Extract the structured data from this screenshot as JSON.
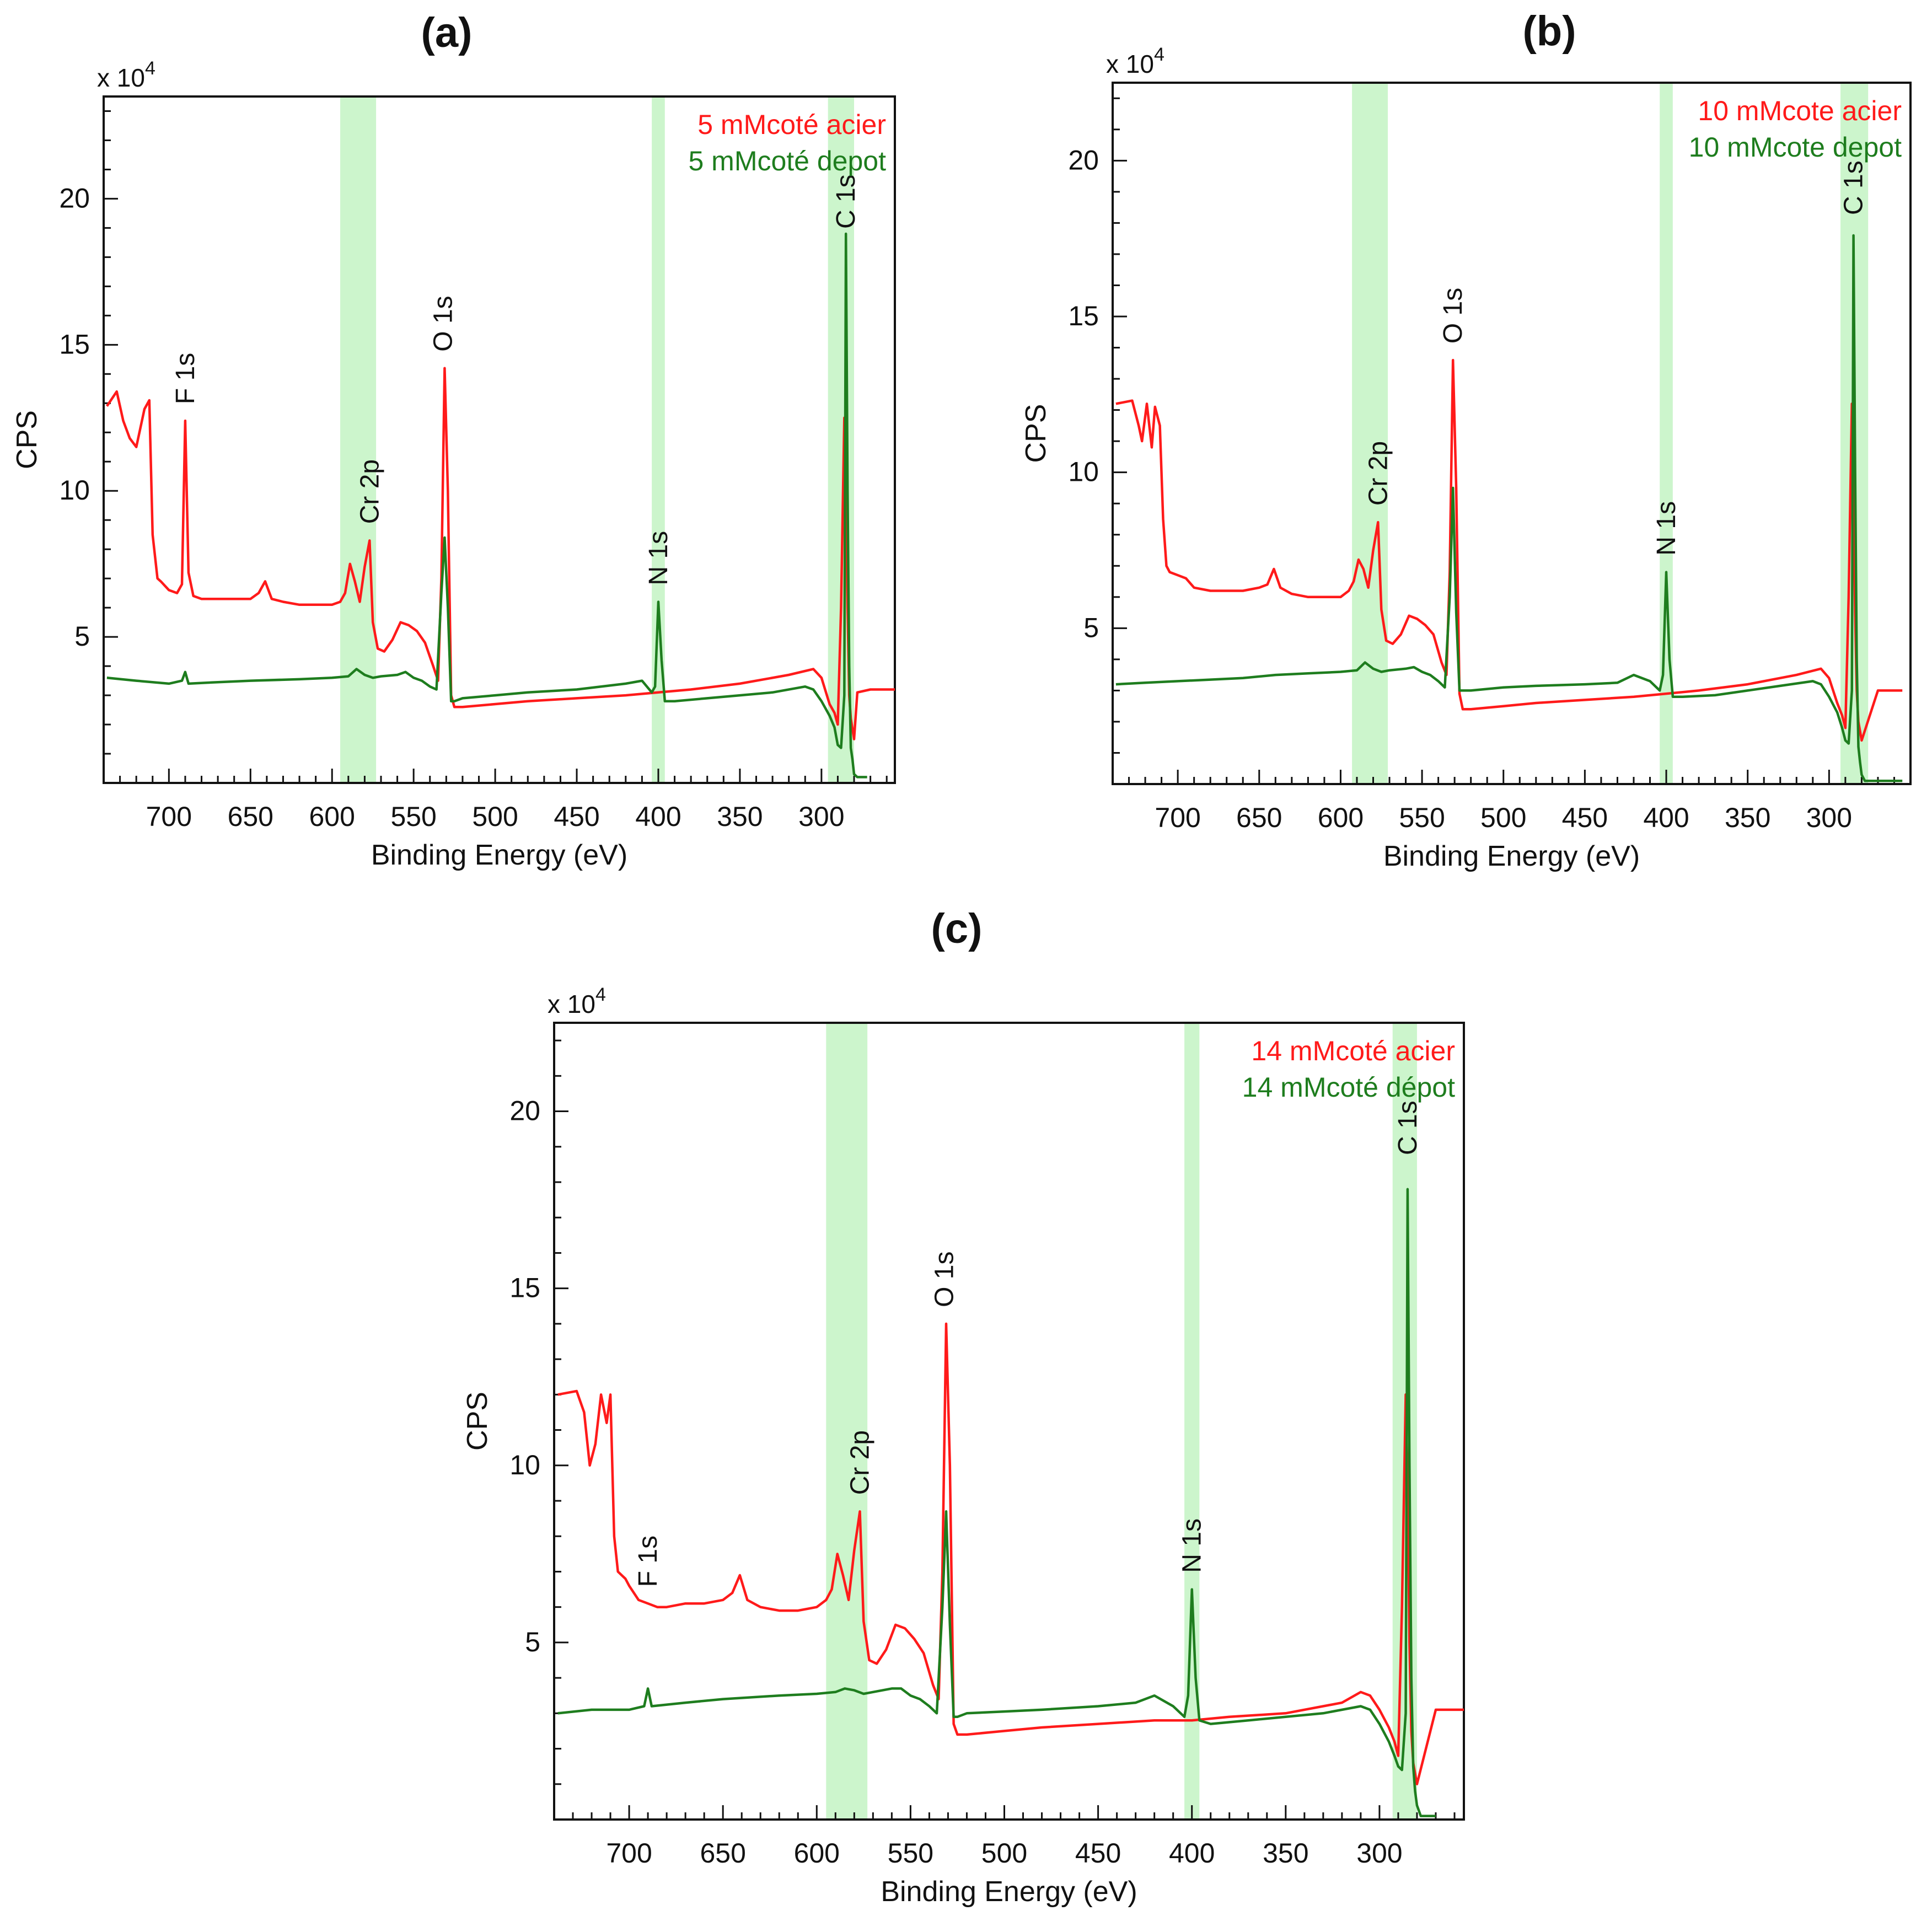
{
  "figure": {
    "panels": [
      {
        "id": "a",
        "panel_label": "(a)",
        "axis_multiplier": "x 10",
        "axis_exponent": "4",
        "xlabel": "Binding Energy (eV)",
        "ylabel": "CPS",
        "x_ticks": [
          "700",
          "650",
          "600",
          "550",
          "500",
          "450",
          "400",
          "350",
          "300"
        ],
        "y_ticks": [
          "5",
          "10",
          "15",
          "20"
        ],
        "legend": [
          {
            "text": "5 mMcoté acier",
            "color": "#ff1a1a"
          },
          {
            "text": "5 mMcoté depot",
            "color": "#1e7d1e"
          }
        ],
        "peak_labels": [
          "F 1s",
          "Cr 2p",
          "O 1s",
          "N 1s",
          "C 1s"
        ]
      },
      {
        "id": "b",
        "panel_label": "(b)",
        "axis_multiplier": "x 10",
        "axis_exponent": "4",
        "xlabel": "Binding Energy (eV)",
        "ylabel": "CPS",
        "x_ticks": [
          "700",
          "650",
          "600",
          "550",
          "500",
          "450",
          "400",
          "350",
          "300"
        ],
        "y_ticks": [
          "5",
          "10",
          "15",
          "20"
        ],
        "legend": [
          {
            "text": "10 mMcote acier",
            "color": "#ff1a1a"
          },
          {
            "text": "10 mMcote depot",
            "color": "#1e7d1e"
          }
        ],
        "peak_labels": [
          "Cr 2p",
          "O 1s",
          "N 1s",
          "C 1s"
        ]
      },
      {
        "id": "c",
        "panel_label": "(c)",
        "axis_multiplier": "x 10",
        "axis_exponent": "4",
        "xlabel": "Binding Energy (eV)",
        "ylabel": "CPS",
        "x_ticks": [
          "700",
          "650",
          "600",
          "550",
          "500",
          "450",
          "400",
          "350",
          "300"
        ],
        "y_ticks": [
          "5",
          "10",
          "15",
          "20"
        ],
        "legend": [
          {
            "text": "14 mMcoté acier",
            "color": "#ff1a1a"
          },
          {
            "text": "14 mMcoté dépot",
            "color": "#1e7d1e"
          }
        ],
        "peak_labels": [
          "F 1s",
          "Cr 2p",
          "O 1s",
          "N 1s",
          "C 1s"
        ]
      }
    ]
  },
  "chart_data": [
    {
      "panel": "(a)",
      "type": "line",
      "xlim": [
        740,
        255
      ],
      "ylim": [
        0,
        23.5
      ],
      "y_scale_note": "CPS x 10^4",
      "highlight_bands": [
        [
          595,
          573
        ],
        [
          404,
          396
        ],
        [
          296,
          280
        ]
      ],
      "peak_annotations": [
        {
          "label": "F 1s",
          "x": 690
        },
        {
          "label": "Cr 2p",
          "x": 577
        },
        {
          "label": "O 1s",
          "x": 532
        },
        {
          "label": "N 1s",
          "x": 400
        },
        {
          "label": "C 1s",
          "x": 285
        }
      ],
      "series": [
        {
          "name": "5 mMcoté acier",
          "color": "#ff1a1a",
          "x": [
            738,
            732,
            728,
            724,
            720,
            715,
            712,
            710,
            707,
            705,
            700,
            695,
            692,
            690,
            688,
            685,
            680,
            670,
            660,
            650,
            645,
            641,
            637,
            630,
            620,
            610,
            600,
            595,
            592,
            589,
            586,
            583,
            580,
            577,
            575,
            572,
            568,
            563,
            558,
            553,
            548,
            543,
            538,
            535,
            533,
            531,
            529,
            527,
            525,
            520,
            500,
            480,
            450,
            420,
            400,
            380,
            350,
            320,
            305,
            300,
            295,
            292,
            290,
            288,
            286,
            285,
            284,
            283,
            282,
            280,
            278,
            270,
            255
          ],
          "values": [
            12.9,
            13.4,
            12.4,
            11.8,
            11.5,
            12.8,
            13.1,
            8.5,
            7.0,
            6.9,
            6.6,
            6.5,
            6.8,
            12.4,
            7.2,
            6.4,
            6.3,
            6.3,
            6.3,
            6.3,
            6.5,
            6.9,
            6.3,
            6.2,
            6.1,
            6.1,
            6.1,
            6.2,
            6.5,
            7.5,
            6.9,
            6.2,
            7.4,
            8.3,
            5.5,
            4.6,
            4.5,
            4.9,
            5.5,
            5.4,
            5.2,
            4.8,
            4.0,
            3.5,
            7.0,
            14.2,
            10.0,
            3.0,
            2.6,
            2.6,
            2.7,
            2.8,
            2.9,
            3.0,
            3.1,
            3.2,
            3.4,
            3.7,
            3.9,
            3.6,
            2.7,
            2.4,
            2.0,
            6.0,
            12.5,
            10.5,
            6.0,
            3.0,
            2.2,
            1.5,
            3.1,
            3.2,
            3.2
          ]
        },
        {
          "name": "5 mMcoté depot",
          "color": "#1e7d1e",
          "x": [
            738,
            720,
            700,
            692,
            690,
            688,
            670,
            650,
            620,
            600,
            590,
            585,
            580,
            575,
            570,
            560,
            555,
            550,
            545,
            540,
            536,
            533,
            531,
            529,
            527,
            525,
            520,
            500,
            480,
            450,
            420,
            410,
            404,
            402,
            400,
            398,
            396,
            390,
            370,
            350,
            330,
            310,
            305,
            300,
            295,
            292,
            290,
            288,
            286,
            285,
            284,
            283,
            282,
            281,
            280,
            278,
            272
          ],
          "values": [
            3.6,
            3.5,
            3.4,
            3.5,
            3.8,
            3.4,
            3.45,
            3.5,
            3.55,
            3.6,
            3.65,
            3.9,
            3.7,
            3.6,
            3.65,
            3.7,
            3.8,
            3.6,
            3.5,
            3.3,
            3.2,
            6.5,
            8.4,
            6.0,
            2.8,
            2.8,
            2.9,
            3.0,
            3.1,
            3.2,
            3.4,
            3.5,
            3.1,
            3.3,
            6.2,
            4.2,
            2.8,
            2.8,
            2.9,
            3.0,
            3.1,
            3.3,
            3.2,
            2.8,
            2.3,
            1.9,
            1.3,
            1.2,
            3.0,
            18.8,
            10.0,
            4.0,
            1.2,
            0.8,
            0.3,
            0.2,
            0.2
          ]
        }
      ]
    },
    {
      "panel": "(b)",
      "type": "line",
      "xlim": [
        740,
        250
      ],
      "ylim": [
        0,
        22.5
      ],
      "y_scale_note": "CPS x 10^4",
      "highlight_bands": [
        [
          593,
          571
        ],
        [
          404,
          396
        ],
        [
          293,
          276
        ]
      ],
      "peak_annotations": [
        {
          "label": "Cr 2p",
          "x": 577
        },
        {
          "label": "O 1s",
          "x": 531
        },
        {
          "label": "N 1s",
          "x": 400
        },
        {
          "label": "C 1s",
          "x": 285
        }
      ],
      "series": [
        {
          "name": "10 mMcote acier",
          "color": "#ff1a1a",
          "x": [
            738,
            728,
            724,
            722,
            719,
            716,
            714,
            711,
            709,
            707,
            705,
            700,
            695,
            690,
            680,
            670,
            660,
            650,
            645,
            641,
            637,
            630,
            620,
            610,
            600,
            595,
            592,
            589,
            586,
            583,
            580,
            577,
            575,
            572,
            568,
            563,
            558,
            553,
            548,
            543,
            538,
            535,
            533,
            531,
            529,
            527,
            525,
            520,
            500,
            480,
            450,
            420,
            400,
            380,
            350,
            320,
            305,
            300,
            295,
            292,
            290,
            288,
            286,
            285,
            284,
            283,
            282,
            280,
            270,
            255
          ],
          "values": [
            12.2,
            12.3,
            11.5,
            11.0,
            12.2,
            10.8,
            12.1,
            11.5,
            8.5,
            7.0,
            6.8,
            6.7,
            6.6,
            6.3,
            6.2,
            6.2,
            6.2,
            6.3,
            6.4,
            6.9,
            6.3,
            6.1,
            6.0,
            6.0,
            6.0,
            6.2,
            6.5,
            7.2,
            6.9,
            6.3,
            7.5,
            8.4,
            5.6,
            4.6,
            4.5,
            4.8,
            5.4,
            5.3,
            5.1,
            4.8,
            3.9,
            3.5,
            6.8,
            13.6,
            9.5,
            2.9,
            2.4,
            2.4,
            2.5,
            2.6,
            2.7,
            2.8,
            2.9,
            3.0,
            3.2,
            3.5,
            3.7,
            3.4,
            2.6,
            2.2,
            1.8,
            6.0,
            12.2,
            9.5,
            5.5,
            3.0,
            2.0,
            1.4,
            3.0,
            3.0
          ]
        },
        {
          "name": "10 mMcote depot",
          "color": "#1e7d1e",
          "x": [
            738,
            720,
            700,
            680,
            660,
            640,
            620,
            600,
            590,
            585,
            580,
            575,
            570,
            560,
            555,
            550,
            545,
            540,
            536,
            533,
            531,
            529,
            527,
            525,
            520,
            500,
            480,
            450,
            430,
            420,
            410,
            404,
            402,
            400,
            398,
            396,
            390,
            370,
            350,
            330,
            310,
            305,
            300,
            295,
            292,
            290,
            288,
            286,
            285,
            284,
            283,
            282,
            281,
            280,
            278,
            270,
            255
          ],
          "values": [
            3.2,
            3.25,
            3.3,
            3.35,
            3.4,
            3.5,
            3.55,
            3.6,
            3.65,
            3.9,
            3.7,
            3.6,
            3.65,
            3.7,
            3.75,
            3.6,
            3.5,
            3.3,
            3.1,
            6.0,
            9.5,
            5.5,
            3.0,
            3.0,
            3.0,
            3.1,
            3.15,
            3.2,
            3.25,
            3.5,
            3.3,
            3.0,
            3.5,
            6.8,
            4.0,
            2.8,
            2.8,
            2.85,
            3.0,
            3.15,
            3.3,
            3.2,
            2.8,
            2.3,
            1.8,
            1.4,
            1.3,
            3.0,
            17.6,
            10.0,
            4.0,
            1.2,
            0.7,
            0.3,
            0.1,
            0.1,
            0.1
          ]
        }
      ]
    },
    {
      "panel": "(c)",
      "type": "line",
      "xlim": [
        740,
        255
      ],
      "ylim": [
        0,
        22.5
      ],
      "y_scale_note": "CPS x 10^4",
      "highlight_bands": [
        [
          595,
          573
        ],
        [
          404,
          396
        ],
        [
          293,
          280
        ]
      ],
      "peak_annotations": [
        {
          "label": "F 1s",
          "x": 690
        },
        {
          "label": "Cr 2p",
          "x": 577
        },
        {
          "label": "O 1s",
          "x": 532
        },
        {
          "label": "N 1s",
          "x": 400
        },
        {
          "label": "C 1s",
          "x": 285
        }
      ],
      "series": [
        {
          "name": "14 mMcoté acier",
          "color": "#ff1a1a",
          "x": [
            738,
            728,
            724,
            721,
            718,
            715,
            712,
            710,
            708,
            706,
            704,
            702,
            700,
            695,
            690,
            685,
            680,
            670,
            660,
            650,
            645,
            641,
            637,
            630,
            620,
            610,
            600,
            595,
            592,
            589,
            586,
            583,
            580,
            577,
            575,
            572,
            568,
            563,
            558,
            553,
            548,
            543,
            538,
            535,
            533,
            531,
            529,
            527,
            525,
            520,
            500,
            480,
            450,
            420,
            400,
            380,
            350,
            320,
            310,
            305,
            300,
            295,
            292,
            290,
            288,
            286,
            285,
            284,
            283,
            282,
            280,
            270,
            255
          ],
          "values": [
            12.0,
            12.1,
            11.5,
            10.0,
            10.6,
            12.0,
            11.2,
            12.0,
            8.0,
            7.0,
            6.9,
            6.8,
            6.6,
            6.2,
            6.1,
            6.0,
            6.0,
            6.1,
            6.1,
            6.2,
            6.4,
            6.9,
            6.2,
            6.0,
            5.9,
            5.9,
            6.0,
            6.2,
            6.5,
            7.5,
            6.9,
            6.2,
            7.6,
            8.7,
            5.6,
            4.5,
            4.4,
            4.8,
            5.5,
            5.4,
            5.1,
            4.7,
            3.8,
            3.4,
            7.0,
            14.0,
            10.0,
            2.7,
            2.4,
            2.4,
            2.5,
            2.6,
            2.7,
            2.8,
            2.8,
            2.9,
            3.0,
            3.3,
            3.6,
            3.5,
            3.1,
            2.6,
            2.2,
            1.8,
            6.0,
            12.0,
            9.5,
            5.0,
            2.5,
            1.6,
            1.0,
            3.1,
            3.1
          ]
        },
        {
          "name": "14 mMcoté dépot",
          "color": "#1e7d1e",
          "x": [
            738,
            720,
            700,
            692,
            690,
            688,
            670,
            650,
            620,
            600,
            590,
            585,
            580,
            575,
            570,
            560,
            555,
            550,
            545,
            540,
            536,
            533,
            531,
            529,
            527,
            525,
            520,
            500,
            480,
            450,
            430,
            420,
            410,
            404,
            402,
            400,
            398,
            396,
            390,
            370,
            350,
            330,
            310,
            305,
            300,
            295,
            292,
            290,
            288,
            286,
            285,
            284,
            283,
            282,
            281,
            280,
            278,
            270
          ],
          "values": [
            3.0,
            3.1,
            3.1,
            3.2,
            3.7,
            3.2,
            3.3,
            3.4,
            3.5,
            3.55,
            3.6,
            3.7,
            3.65,
            3.55,
            3.6,
            3.7,
            3.7,
            3.5,
            3.4,
            3.2,
            3.0,
            6.0,
            8.7,
            5.5,
            2.9,
            2.9,
            3.0,
            3.05,
            3.1,
            3.2,
            3.3,
            3.5,
            3.2,
            2.9,
            3.5,
            6.5,
            4.0,
            2.8,
            2.7,
            2.8,
            2.9,
            3.0,
            3.2,
            3.1,
            2.7,
            2.2,
            1.8,
            1.5,
            1.4,
            3.0,
            17.8,
            10.0,
            4.0,
            1.5,
            0.8,
            0.4,
            0.1,
            0.1
          ]
        }
      ]
    }
  ]
}
